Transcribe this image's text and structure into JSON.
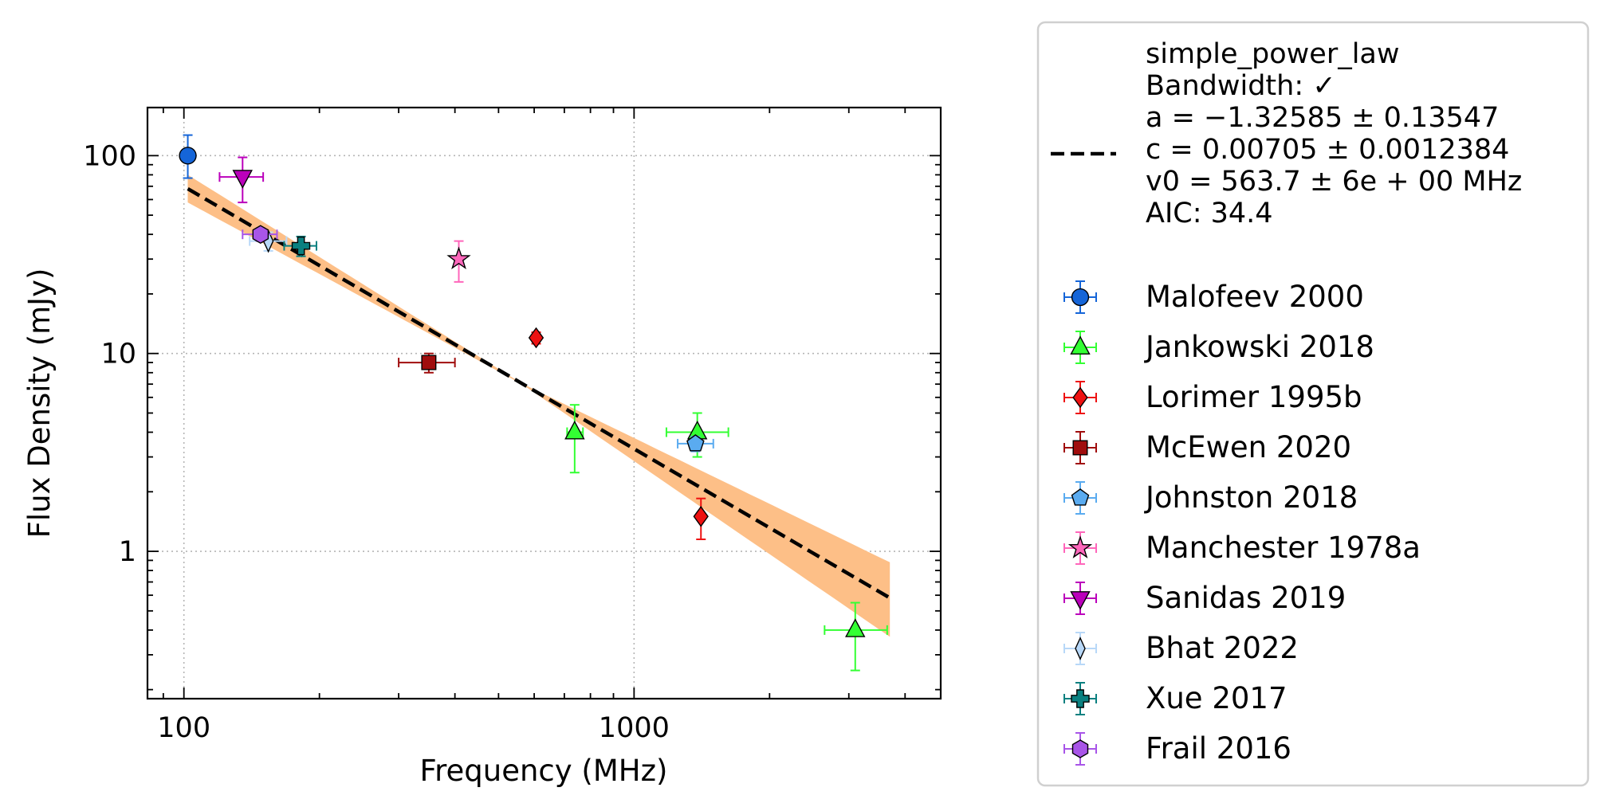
{
  "chart_data": {
    "type": "scatter",
    "xlabel": "Frequency (MHz)",
    "ylabel": "Flux Density (mJy)",
    "xscale": "log",
    "yscale": "log",
    "xlim": [
      83,
      4800
    ],
    "ylim": [
      0.18,
      175
    ],
    "grid": true,
    "legend_position": "outside-right",
    "x_ticks": [
      {
        "value": 100,
        "label": "100"
      },
      {
        "value": 1000,
        "label": "1000"
      }
    ],
    "y_ticks": [
      {
        "value": 1,
        "label": "1"
      },
      {
        "value": 10,
        "label": "10"
      },
      {
        "value": 100,
        "label": "100"
      }
    ],
    "fit": {
      "name": "simple_power_law",
      "legend_lines": [
        "simple_power_law",
        "Bandwidth: ✓",
        "a = −1.32585 ± 0.13547",
        "c = 0.00705 ± 0.0012384",
        "v0 = 563.7 ± 6e + 00 MHz",
        "AIC: 34.4"
      ],
      "a": -1.32585,
      "c": 0.00705,
      "v0": 563.7,
      "x_range": [
        102,
        3700
      ],
      "band_color": "#fdbf87",
      "line_color": "#000000",
      "band": [
        {
          "x": 102,
          "lo": 58,
          "hi": 80
        },
        {
          "x": 563.7,
          "lo": 7.0,
          "hi": 7.05
        },
        {
          "x": 3700,
          "lo": 0.37,
          "hi": 0.88
        }
      ]
    },
    "series": [
      {
        "name": "Malofeev 2000",
        "marker": "circle",
        "color": "#1565d8",
        "points": [
          {
            "x": 102,
            "y": 100,
            "ylo": 77,
            "yhi": 127
          }
        ]
      },
      {
        "name": "Jankowski 2018",
        "marker": "triangle-up",
        "color": "#33ff33",
        "points": [
          {
            "x": 738,
            "y": 4.0,
            "ylo": 2.5,
            "yhi": 5.5,
            "xlo": 710,
            "xhi": 770
          },
          {
            "x": 1382,
            "y": 4.0,
            "ylo": 3.0,
            "yhi": 5.0,
            "xlo": 1180,
            "xhi": 1620
          },
          {
            "x": 3100,
            "y": 0.4,
            "ylo": 0.25,
            "yhi": 0.55,
            "xlo": 2650,
            "xhi": 3650
          }
        ]
      },
      {
        "name": "Lorimer 1995b",
        "marker": "diamond",
        "color": "#ee1111",
        "points": [
          {
            "x": 606,
            "y": 12.0,
            "ylo": 11.2,
            "yhi": 12.8
          },
          {
            "x": 1408,
            "y": 1.5,
            "ylo": 1.15,
            "yhi": 1.85
          }
        ]
      },
      {
        "name": "McEwen 2020",
        "marker": "square",
        "color": "#a00d0d",
        "points": [
          {
            "x": 350,
            "y": 9.0,
            "ylo": 8.0,
            "yhi": 10.0,
            "xlo": 300,
            "xhi": 400
          }
        ]
      },
      {
        "name": "Johnston 2018",
        "marker": "pentagon",
        "color": "#5aabf0",
        "points": [
          {
            "x": 1369,
            "y": 3.5,
            "ylo": 3.2,
            "yhi": 3.8,
            "xlo": 1250,
            "xhi": 1500
          }
        ]
      },
      {
        "name": "Manchester 1978a",
        "marker": "star",
        "color": "#ff66bb",
        "points": [
          {
            "x": 408,
            "y": 30,
            "ylo": 23,
            "yhi": 37
          }
        ]
      },
      {
        "name": "Sanidas 2019",
        "marker": "triangle-down",
        "color": "#bb00bb",
        "points": [
          {
            "x": 135,
            "y": 78,
            "ylo": 58,
            "yhi": 98,
            "xlo": 120,
            "xhi": 150
          }
        ]
      },
      {
        "name": "Bhat 2022",
        "marker": "thin-diamond",
        "color": "#b8d8f8",
        "points": [
          {
            "x": 154,
            "y": 37,
            "ylo": 33,
            "yhi": 41,
            "xlo": 140,
            "xhi": 169
          }
        ]
      },
      {
        "name": "Xue 2017",
        "marker": "plus",
        "color": "#0a8080",
        "points": [
          {
            "x": 182,
            "y": 35,
            "ylo": 31,
            "yhi": 39,
            "xlo": 167,
            "xhi": 197
          }
        ]
      },
      {
        "name": "Frail 2016",
        "marker": "hexagon",
        "color": "#a855e8",
        "points": [
          {
            "x": 148,
            "y": 40,
            "ylo": 37,
            "yhi": 43,
            "xlo": 135,
            "xhi": 161
          }
        ]
      }
    ]
  }
}
